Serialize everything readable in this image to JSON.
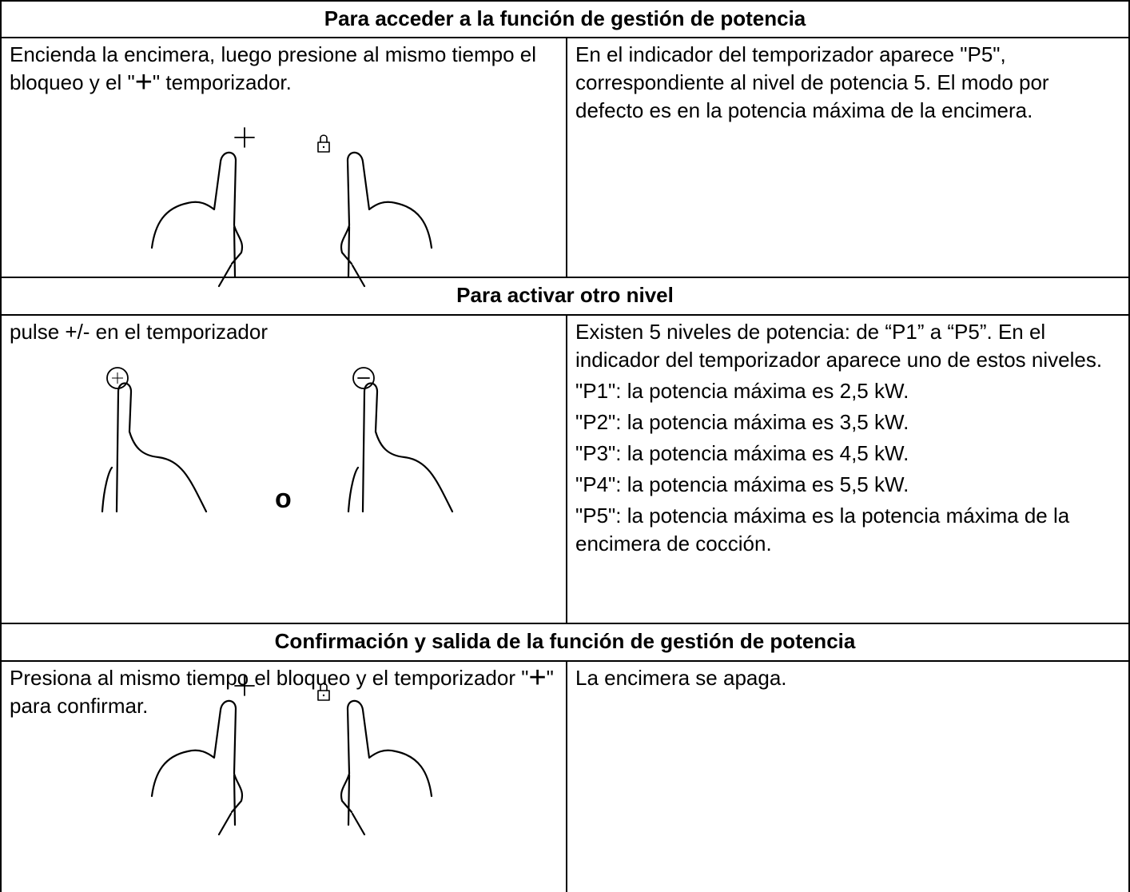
{
  "sections": [
    {
      "heading": "Para acceder a la función de gestión de potencia",
      "left": {
        "text_before": "Encienda la encimera, luego presione al mismo tiempo el bloqueo y el \"",
        "symbol": "+",
        "text_after": "\" temporizador."
      },
      "right": [
        "En el indicador del temporizador aparece \"P5\", correspondiente al nivel de potencia 5. El modo por defecto es en la potencia máxima de la encimera."
      ]
    },
    {
      "heading": "Para activar otro nivel",
      "left": {
        "text": "pulse +/- en el temporizador",
        "separator": "o"
      },
      "right": [
        "Existen 5 niveles de potencia: de “P1” a “P5”. En el indicador del temporizador aparece uno de estos niveles.",
        "\"P1\": la potencia máxima es 2,5 kW.",
        "\"P2\": la potencia máxima es 3,5 kW.",
        "\"P3\": la potencia máxima es 4,5 kW.",
        "\"P4\": la potencia máxima es 5,5 kW.",
        "\"P5\": la potencia máxima es la potencia máxima de la encimera de cocción."
      ]
    },
    {
      "heading": "Confirmación y salida de la función de gestión de potencia",
      "left": {
        "text_before": "Presiona al mismo tiempo el bloqueo y el temporizador \"",
        "symbol": "+",
        "text_after": "\" para confirmar."
      },
      "right": [
        "La encimera se apaga."
      ]
    }
  ]
}
